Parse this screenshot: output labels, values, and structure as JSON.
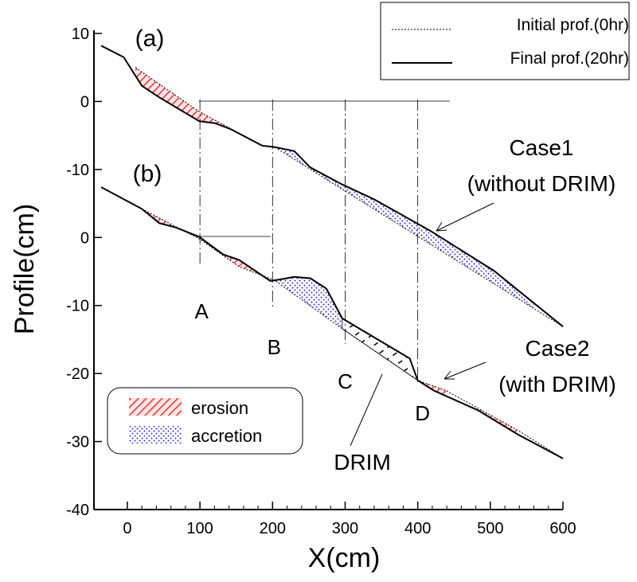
{
  "chart_data": {
    "type": "line",
    "xlabel": "X(cm)",
    "ylabel": "Profile(cm)",
    "xlim": [
      -46,
      600
    ],
    "ylim": [
      -60,
      10
    ],
    "xticks": [
      0,
      100,
      200,
      300,
      400,
      500,
      600
    ],
    "yticks": [
      10,
      0,
      -10,
      {
        "value": -20,
        "label": "0"
      },
      {
        "value": -30,
        "label": "-10"
      },
      {
        "value": -40,
        "label": "-20"
      },
      {
        "value": -50,
        "label": "-30"
      },
      {
        "value": -60,
        "label": "-40"
      }
    ],
    "legend": [
      "Initial prof.(0hr)",
      "Final prof.(20hr)"
    ],
    "fill_legend": [
      "erosion",
      "accretion"
    ],
    "sections": [
      {
        "label": "A",
        "x": 100
      },
      {
        "label": "B",
        "x": 200
      },
      {
        "label": "C",
        "x": 300
      },
      {
        "label": "D",
        "x": 400
      }
    ],
    "structure_label": "DRIM",
    "cases": [
      {
        "label": "(a)",
        "annotation": [
          "Case1",
          "(without DRIM)"
        ],
        "initial": {
          "x": [
            11,
            99,
            186,
            203,
            395,
            600
          ],
          "values": [
            5.0,
            -1.5,
            -6.5,
            -6.7,
            -19.5,
            -33.1
          ]
        },
        "final": {
          "x": [
            -36,
            -5,
            11,
            20,
            44,
            99,
            121,
            143,
            186,
            203,
            230,
            252,
            296,
            340,
            417,
            505,
            600
          ],
          "values": [
            8.2,
            6.5,
            3.8,
            2.3,
            0.6,
            -2.9,
            -3.2,
            -4.1,
            -6.5,
            -6.7,
            -7.3,
            -9.7,
            -12.2,
            -14.4,
            -19.0,
            -24.9,
            -33.1
          ]
        },
        "regions": [
          {
            "type": "erosion",
            "x": [
              11,
              186
            ]
          },
          {
            "type": "accretion",
            "x": [
              203,
              560
            ]
          }
        ]
      },
      {
        "label": "(b)",
        "annotation": [
          "Case2",
          "(with DRIM)"
        ],
        "initial": {
          "x": [
            20,
            99,
            154,
            203,
            296,
            400,
            439,
            537,
            600
          ],
          "values": [
            -15.8,
            -20.2,
            -24.3,
            -26.3,
            -33.4,
            -41.0,
            -42.5,
            -48.3,
            -52.5
          ]
        },
        "final": {
          "x": [
            -36,
            20,
            44,
            66,
            99,
            132,
            154,
            197,
            214,
            230,
            252,
            274,
            296,
            389,
            400,
            422,
            483,
            537,
            600
          ],
          "values": [
            -12.6,
            -15.8,
            -17.9,
            -18.5,
            -19.9,
            -22.5,
            -23.3,
            -26.4,
            -26.1,
            -25.8,
            -26.0,
            -27.5,
            -31.9,
            -37.8,
            -41.0,
            -42.5,
            -45.4,
            -48.9,
            -52.5
          ]
        },
        "regions": [
          {
            "type": "erosion",
            "x": [
              20,
              203
            ]
          },
          {
            "type": "accretion",
            "x": [
              203,
              296
            ]
          },
          {
            "type": "drim",
            "x": [
              296,
              400
            ]
          },
          {
            "type": "erosion",
            "x": [
              400,
              439
            ]
          },
          {
            "type": "erosion",
            "x": [
              483,
              537
            ]
          }
        ]
      }
    ]
  }
}
